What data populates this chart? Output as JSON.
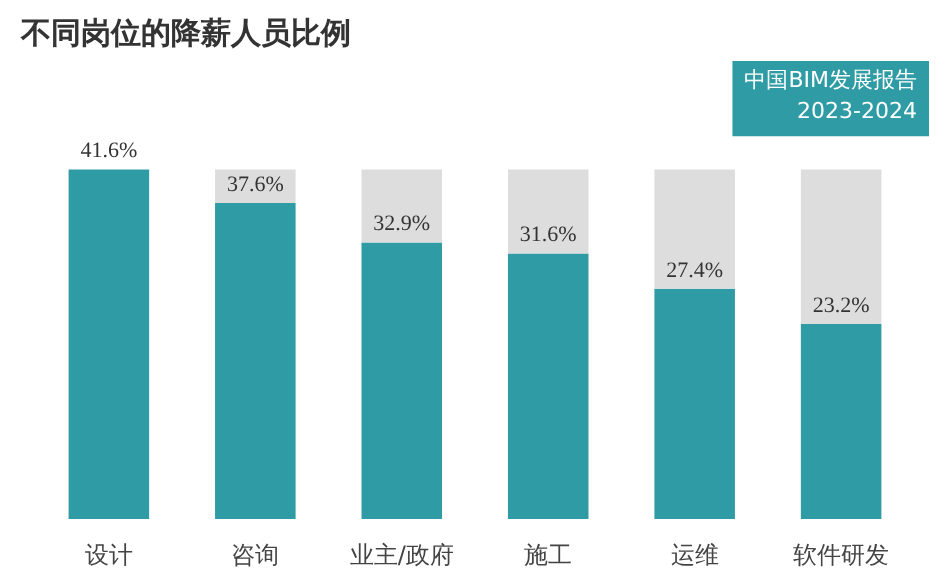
{
  "chart_data": {
    "type": "bar",
    "title": "不同岗位的降薪人员比例",
    "annotations": [
      "中国BIM发展报告\n2023-2024"
    ],
    "categories": [
      "设计",
      "咨询",
      "业主/政府",
      "施工",
      "运维",
      "软件研发"
    ],
    "stacked": true,
    "series": [
      {
        "color": "#2f9ca5",
        "values": [
          41.6,
          37.6,
          32.9,
          31.6,
          27.4,
          23.2
        ],
        "value_labels": [
          "41.6%",
          "37.6%",
          "32.9%",
          "31.6%",
          "27.4%",
          "23.2%"
        ]
      },
      {
        "color": "#dddddd",
        "values": [
          0,
          4.0,
          8.7,
          10.0,
          14.2,
          18.4
        ]
      }
    ],
    "grid": false
  }
}
